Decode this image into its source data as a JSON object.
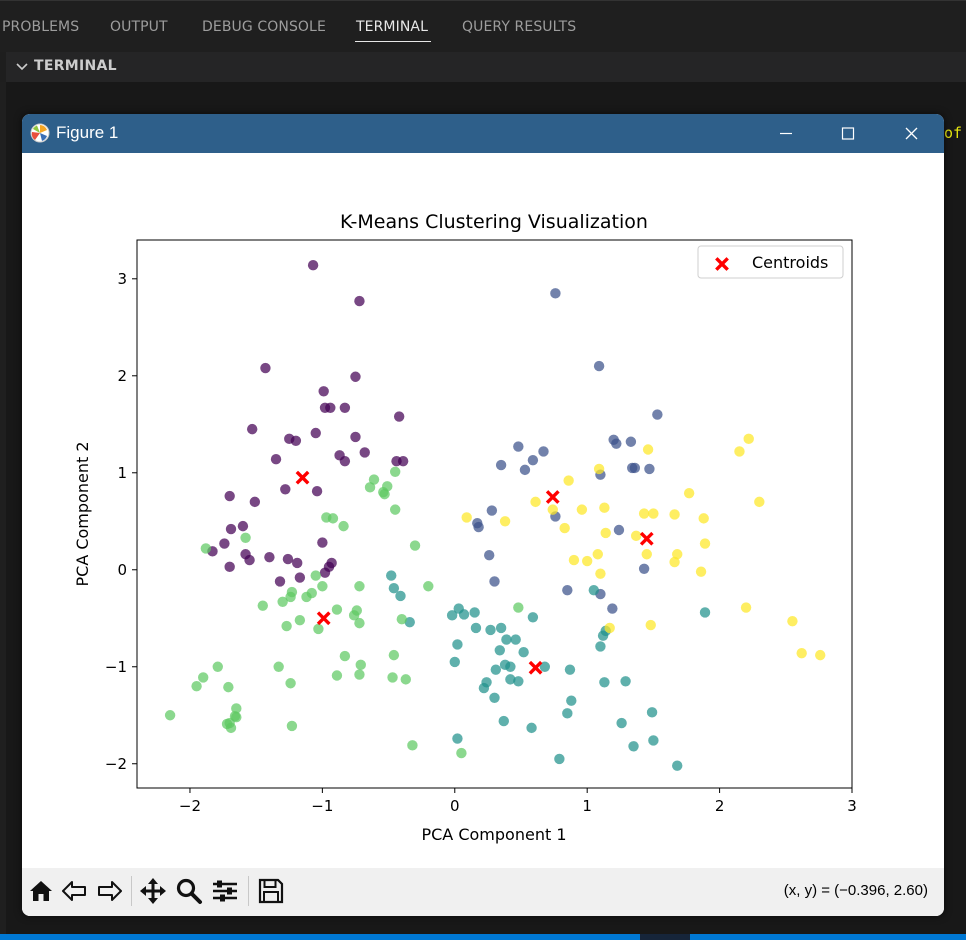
{
  "panel": {
    "tabs": [
      {
        "label": "PROBLEMS"
      },
      {
        "label": "OUTPUT"
      },
      {
        "label": "DEBUG CONSOLE"
      },
      {
        "label": "TERMINAL"
      },
      {
        "label": "QUERY RESULTS"
      }
    ],
    "section_title": "TERMINAL",
    "terminal_fragment": "of"
  },
  "window": {
    "title": "Figure 1",
    "coords_readout": "(x, y) = (−0.396, 2.60)",
    "toolbar_icons": [
      "home-icon",
      "back-icon",
      "forward-icon",
      "pan-icon",
      "zoom-icon",
      "configure-subplots-icon",
      "save-icon"
    ]
  },
  "chart_data": {
    "type": "scatter",
    "title": "K-Means Clustering Visualization",
    "xlabel": "PCA Component 1",
    "ylabel": "PCA Component 2",
    "xlim": [
      -2.4,
      3.0
    ],
    "ylim": [
      -2.25,
      3.4
    ],
    "xticks": [
      -2,
      -1,
      0,
      1,
      2,
      3
    ],
    "yticks": [
      -2,
      -1,
      0,
      1,
      2,
      3
    ],
    "xtick_labels": [
      "−2",
      "−1",
      "0",
      "1",
      "2",
      "3"
    ],
    "ytick_labels": [
      "−2",
      "−1",
      "0",
      "1",
      "2",
      "3"
    ],
    "legend": {
      "label": "Centroids",
      "placement": "upper right"
    },
    "series": [
      {
        "cluster": 0,
        "color": "#440154",
        "points": [
          [
            -1.07,
            3.14
          ],
          [
            -0.72,
            2.77
          ],
          [
            -1.43,
            2.08
          ],
          [
            -0.75,
            1.99
          ],
          [
            -0.99,
            1.84
          ],
          [
            -0.83,
            1.67
          ],
          [
            -0.98,
            1.67
          ],
          [
            -0.94,
            1.67
          ],
          [
            -0.42,
            1.58
          ],
          [
            -1.53,
            1.45
          ],
          [
            -1.05,
            1.41
          ],
          [
            -1.25,
            1.35
          ],
          [
            -1.2,
            1.33
          ],
          [
            -0.75,
            1.37
          ],
          [
            -0.87,
            1.18
          ],
          [
            -0.83,
            1.12
          ],
          [
            -0.68,
            1.21
          ],
          [
            -0.44,
            1.12
          ],
          [
            -0.39,
            1.12
          ],
          [
            -1.35,
            1.14
          ],
          [
            -1.28,
            0.83
          ],
          [
            -1.04,
            0.81
          ],
          [
            -1.7,
            0.76
          ],
          [
            -1.51,
            0.7
          ],
          [
            -1.6,
            0.45
          ],
          [
            -1.69,
            0.42
          ],
          [
            -1.74,
            0.27
          ],
          [
            -1.83,
            0.19
          ],
          [
            -1.0,
            0.28
          ],
          [
            -1.58,
            0.16
          ],
          [
            -1.55,
            0.1
          ],
          [
            -1.4,
            0.13
          ],
          [
            -1.26,
            0.11
          ],
          [
            -1.19,
            0.07
          ],
          [
            -0.95,
            0.03
          ],
          [
            -0.93,
            0.07
          ],
          [
            -1.7,
            0.03
          ],
          [
            -1.32,
            -0.12
          ],
          [
            -1.17,
            -0.08
          ],
          [
            -0.98,
            -0.03
          ]
        ]
      },
      {
        "cluster": 1,
        "color": "#3b528b",
        "points": [
          [
            0.76,
            2.85
          ],
          [
            1.09,
            2.1
          ],
          [
            1.53,
            1.6
          ],
          [
            1.2,
            1.34
          ],
          [
            1.22,
            1.3
          ],
          [
            1.33,
            1.32
          ],
          [
            1.47,
            1.04
          ],
          [
            1.34,
            1.05
          ],
          [
            1.36,
            1.05
          ],
          [
            0.48,
            1.27
          ],
          [
            0.67,
            1.22
          ],
          [
            0.59,
            1.13
          ],
          [
            0.53,
            1.03
          ],
          [
            0.35,
            1.08
          ],
          [
            1.1,
            0.98
          ],
          [
            0.28,
            0.61
          ],
          [
            0.17,
            0.48
          ],
          [
            0.18,
            0.44
          ],
          [
            0.76,
            0.55
          ],
          [
            1.24,
            0.41
          ],
          [
            0.26,
            0.15
          ],
          [
            1.43,
            0.01
          ],
          [
            0.3,
            -0.12
          ],
          [
            0.85,
            -0.21
          ],
          [
            1.1,
            -0.25
          ],
          [
            1.19,
            -0.4
          ]
        ]
      },
      {
        "cluster": 2,
        "color": "#21918c",
        "points": [
          [
            -0.48,
            -0.06
          ],
          [
            -0.46,
            -0.19
          ],
          [
            -0.41,
            -0.27
          ],
          [
            -0.34,
            -0.54
          ],
          [
            -0.02,
            -0.47
          ],
          [
            0.03,
            -0.4
          ],
          [
            0.07,
            -0.46
          ],
          [
            0.15,
            -0.44
          ],
          [
            0.16,
            -0.6
          ],
          [
            0.27,
            -0.62
          ],
          [
            0.35,
            -0.6
          ],
          [
            0.39,
            -0.72
          ],
          [
            0.46,
            -0.72
          ],
          [
            0.52,
            -0.85
          ],
          [
            0.59,
            -0.49
          ],
          [
            0.34,
            -0.83
          ],
          [
            0.02,
            -0.77
          ],
          [
            0.0,
            -0.95
          ],
          [
            0.38,
            -0.98
          ],
          [
            0.31,
            -1.03
          ],
          [
            0.42,
            -1.0
          ],
          [
            0.68,
            -1.0
          ],
          [
            0.87,
            -1.03
          ],
          [
            0.42,
            -1.13
          ],
          [
            0.48,
            -1.15
          ],
          [
            0.24,
            -1.16
          ],
          [
            0.22,
            -1.22
          ],
          [
            0.3,
            -1.32
          ],
          [
            1.13,
            -1.16
          ],
          [
            1.29,
            -1.15
          ],
          [
            0.88,
            -1.35
          ],
          [
            0.85,
            -1.48
          ],
          [
            1.05,
            -0.21
          ],
          [
            1.12,
            -0.68
          ],
          [
            1.14,
            -0.63
          ],
          [
            1.1,
            -0.79
          ],
          [
            1.89,
            -0.44
          ],
          [
            0.37,
            -1.56
          ],
          [
            0.58,
            -1.63
          ],
          [
            1.26,
            -1.58
          ],
          [
            1.49,
            -1.47
          ],
          [
            0.02,
            -1.74
          ],
          [
            1.35,
            -1.82
          ],
          [
            1.5,
            -1.76
          ],
          [
            0.79,
            -1.95
          ],
          [
            1.68,
            -2.02
          ]
        ]
      },
      {
        "cluster": 3,
        "color": "#5ec962",
        "points": [
          [
            -0.61,
            0.93
          ],
          [
            -0.45,
            1.01
          ],
          [
            -0.51,
            0.86
          ],
          [
            -0.54,
            0.8
          ],
          [
            -0.53,
            0.78
          ],
          [
            -0.64,
            0.85
          ],
          [
            -0.45,
            0.62
          ],
          [
            -0.97,
            0.54
          ],
          [
            -0.92,
            0.53
          ],
          [
            -0.84,
            0.45
          ],
          [
            -0.3,
            0.25
          ],
          [
            -1.58,
            0.33
          ],
          [
            -1.88,
            0.22
          ],
          [
            -1.05,
            -0.06
          ],
          [
            -1.0,
            -0.17
          ],
          [
            -1.08,
            -0.24
          ],
          [
            -1.12,
            -0.28
          ],
          [
            -1.23,
            -0.23
          ],
          [
            -0.72,
            -0.17
          ],
          [
            -0.2,
            -0.17
          ],
          [
            -1.45,
            -0.37
          ],
          [
            -1.3,
            -0.33
          ],
          [
            -1.24,
            -0.28
          ],
          [
            -0.74,
            -0.42
          ],
          [
            -0.89,
            -0.41
          ],
          [
            -0.76,
            -0.47
          ],
          [
            -1.17,
            -0.52
          ],
          [
            -0.72,
            -0.55
          ],
          [
            -1.27,
            -0.58
          ],
          [
            -1.03,
            -0.61
          ],
          [
            -0.4,
            -0.51
          ],
          [
            -0.83,
            -0.89
          ],
          [
            -0.46,
            -0.88
          ],
          [
            -0.71,
            -0.98
          ],
          [
            -1.33,
            -1.0
          ],
          [
            -1.79,
            -1.0
          ],
          [
            -1.9,
            -1.11
          ],
          [
            -0.72,
            -1.08
          ],
          [
            -0.89,
            -1.09
          ],
          [
            -0.47,
            -1.11
          ],
          [
            -0.37,
            -1.13
          ],
          [
            -1.95,
            -1.2
          ],
          [
            -1.71,
            -1.21
          ],
          [
            -1.24,
            -1.17
          ],
          [
            -2.15,
            -1.5
          ],
          [
            -1.65,
            -1.43
          ],
          [
            -1.66,
            -1.51
          ],
          [
            -1.65,
            -1.52
          ],
          [
            -1.72,
            -1.59
          ],
          [
            -1.7,
            -1.58
          ],
          [
            -1.69,
            -1.63
          ],
          [
            -1.23,
            -1.61
          ],
          [
            -0.32,
            -1.81
          ],
          [
            0.05,
            -1.89
          ],
          [
            0.48,
            -0.39
          ]
        ]
      },
      {
        "cluster": 4,
        "color": "#fde725",
        "points": [
          [
            2.22,
            1.35
          ],
          [
            2.15,
            1.22
          ],
          [
            1.46,
            1.24
          ],
          [
            1.09,
            1.04
          ],
          [
            0.86,
            0.92
          ],
          [
            1.77,
            0.79
          ],
          [
            2.3,
            0.7
          ],
          [
            0.61,
            0.7
          ],
          [
            0.96,
            0.62
          ],
          [
            1.13,
            0.64
          ],
          [
            1.43,
            0.58
          ],
          [
            1.5,
            0.58
          ],
          [
            1.66,
            0.57
          ],
          [
            1.88,
            0.53
          ],
          [
            0.09,
            0.54
          ],
          [
            0.38,
            0.5
          ],
          [
            0.83,
            0.43
          ],
          [
            1.14,
            0.38
          ],
          [
            1.37,
            0.35
          ],
          [
            1.45,
            0.16
          ],
          [
            1.68,
            0.16
          ],
          [
            1.08,
            0.16
          ],
          [
            0.9,
            0.1
          ],
          [
            1.0,
            0.09
          ],
          [
            1.66,
            0.08
          ],
          [
            1.86,
            -0.02
          ],
          [
            1.89,
            0.27
          ],
          [
            1.1,
            -0.04
          ],
          [
            2.2,
            -0.39
          ],
          [
            2.55,
            -0.53
          ],
          [
            1.48,
            -0.57
          ],
          [
            1.17,
            -0.6
          ],
          [
            2.62,
            -0.86
          ],
          [
            2.76,
            -0.88
          ],
          [
            0.74,
            0.62
          ]
        ]
      }
    ],
    "centroids": [
      [
        -1.15,
        0.95
      ],
      [
        0.74,
        0.75
      ],
      [
        1.45,
        0.32
      ],
      [
        0.61,
        -1.01
      ],
      [
        -0.99,
        -0.5
      ]
    ]
  }
}
